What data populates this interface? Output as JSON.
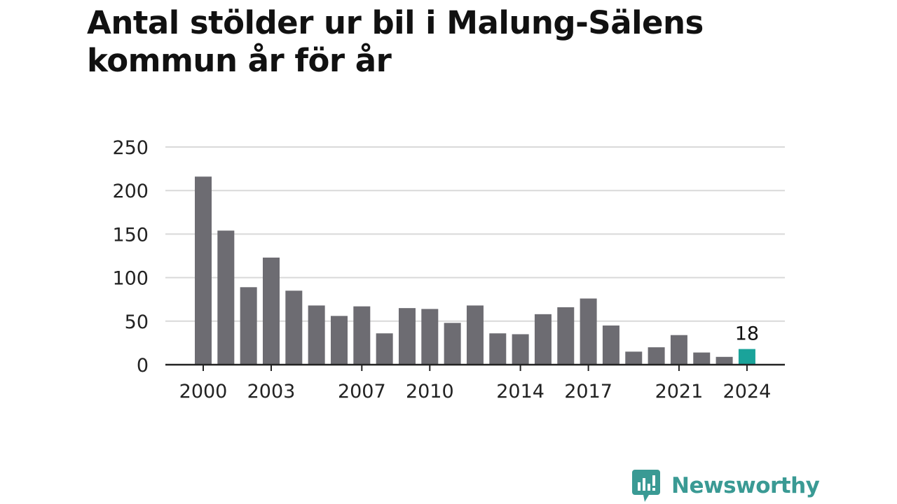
{
  "title": "Antal stölder ur bil i Malung-Sälens kommun år för år",
  "brand": {
    "name": "Newsworthy",
    "icon": "newsworthy-logo-icon",
    "color": "#3a9a94"
  },
  "chart_data": {
    "type": "bar",
    "title": "Antal stölder ur bil i Malung-Sälens kommun år för år",
    "xlabel": "",
    "ylabel": "",
    "ylim": [
      0,
      250
    ],
    "yticks": [
      0,
      50,
      100,
      150,
      200,
      250
    ],
    "grid": true,
    "categories": [
      "2000",
      "2001",
      "2002",
      "2003",
      "2004",
      "2005",
      "2006",
      "2007",
      "2008",
      "2009",
      "2010",
      "2011",
      "2012",
      "2013",
      "2014",
      "2015",
      "2016",
      "2017",
      "2018",
      "2019",
      "2020",
      "2021",
      "2022",
      "2023",
      "2024"
    ],
    "xtick_labels": [
      "2000",
      "2003",
      "2007",
      "2010",
      "2014",
      "2017",
      "2021",
      "2024"
    ],
    "values": [
      216,
      154,
      89,
      123,
      85,
      68,
      56,
      67,
      36,
      65,
      64,
      48,
      68,
      36,
      35,
      58,
      66,
      76,
      45,
      15,
      20,
      34,
      14,
      9,
      18
    ],
    "highlight_index": 24,
    "highlight_label": "18",
    "colors": {
      "bar": "#6d6c72",
      "highlight": "#1aa39a",
      "grid": "#d9d9d9",
      "axis": "#222222"
    }
  }
}
